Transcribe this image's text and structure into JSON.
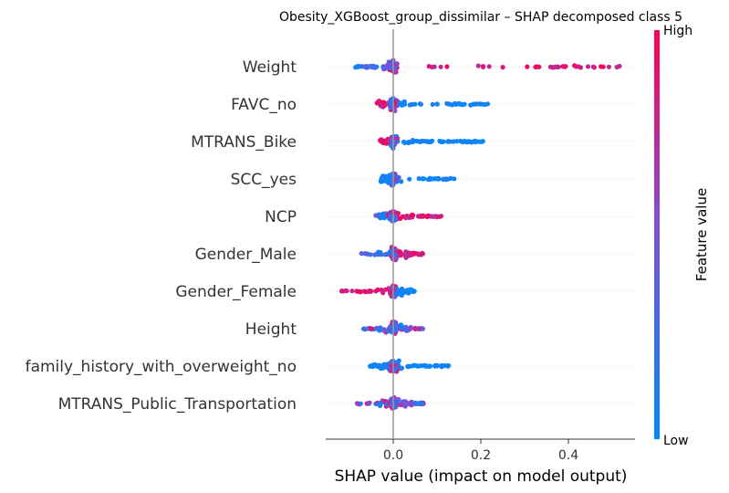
{
  "chart_data": {
    "type": "scatter",
    "subtype": "shap-beeswarm",
    "title": "Obesity_XGBoost_group_dissimilar – SHAP decomposed class 5",
    "xlabel": "SHAP value (impact on model output)",
    "xlim": [
      -0.15,
      0.56
    ],
    "xticks": [
      0.0,
      0.2,
      0.4
    ],
    "xtick_labels": [
      "0.0",
      "0.2",
      "0.4"
    ],
    "grid": false,
    "features": [
      "Weight",
      "FAVC_no",
      "MTRANS_Bike",
      "SCC_yes",
      "NCP",
      "Gender_Male",
      "Gender_Female",
      "Height",
      "family_history_with_overweight_no",
      "MTRANS_Public_Transportation"
    ],
    "feature_spread": [
      {
        "x_min": -0.09,
        "x_max": 0.52,
        "high_side": "positive"
      },
      {
        "x_min": -0.04,
        "x_max": 0.23,
        "high_side": "negative"
      },
      {
        "x_min": -0.03,
        "x_max": 0.21,
        "high_side": "negative"
      },
      {
        "x_min": -0.03,
        "x_max": 0.14,
        "high_side": "none"
      },
      {
        "x_min": -0.04,
        "x_max": 0.11,
        "high_side": "positive"
      },
      {
        "x_min": -0.08,
        "x_max": 0.07,
        "high_side": "positive"
      },
      {
        "x_min": -0.12,
        "x_max": 0.05,
        "high_side": "negative"
      },
      {
        "x_min": -0.07,
        "x_max": 0.07,
        "high_side": "mixed"
      },
      {
        "x_min": -0.06,
        "x_max": 0.13,
        "high_side": "none"
      },
      {
        "x_min": -0.09,
        "x_max": 0.07,
        "high_side": "mixed"
      }
    ],
    "colorbar": {
      "label": "Feature value",
      "high_label": "High",
      "low_label": "Low",
      "low_color": "#008bfb",
      "mid_color": "#7c52d9",
      "high_color": "#ff0051"
    }
  }
}
